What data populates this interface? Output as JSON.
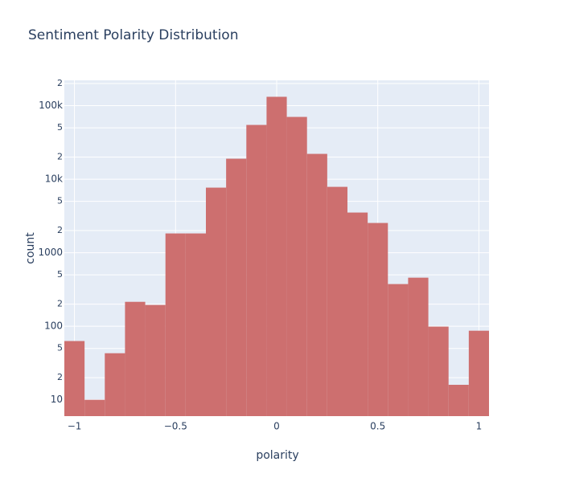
{
  "chart_data": {
    "type": "histogram",
    "title": "Sentiment Polarity Distribution",
    "x_label": "polarity",
    "y_label": "count",
    "bins": [
      -1.05,
      -0.95,
      -0.85,
      -0.75,
      -0.65,
      -0.55,
      -0.45,
      -0.35,
      -0.25,
      -0.15,
      -0.05,
      0.05,
      0.15,
      0.25,
      0.35,
      0.45,
      0.55,
      0.65,
      0.75,
      0.85,
      0.95,
      1.05
    ],
    "values": [
      63,
      10,
      43,
      215,
      195,
      1830,
      1830,
      7680,
      19000,
      54700,
      132000,
      70300,
      22100,
      7870,
      3520,
      2540,
      375,
      458,
      99,
      16,
      87
    ],
    "color": "#cd6f6f",
    "xlim": [
      -1.05,
      1.05
    ],
    "xticks": [
      {
        "value": -1,
        "label": "−1"
      },
      {
        "value": -0.5,
        "label": "−0.5"
      },
      0,
      0.5,
      1
    ],
    "ylim": [
      6,
      221000
    ],
    "log_y": true,
    "grid": true,
    "yticks": [
      10,
      {
        "value": 20,
        "label": "2"
      },
      {
        "value": 50,
        "label": "5"
      },
      100,
      {
        "value": 200,
        "label": "2"
      },
      {
        "value": 500,
        "label": "5"
      },
      1000,
      {
        "value": 2000,
        "label": "2"
      },
      {
        "value": 5000,
        "label": "5"
      },
      {
        "value": 10000,
        "label": "10k"
      },
      {
        "value": 20000,
        "label": "2"
      },
      {
        "value": 50000,
        "label": "5"
      },
      {
        "value": 100000,
        "label": "100k"
      },
      {
        "value": 200000,
        "label": "2"
      }
    ]
  }
}
